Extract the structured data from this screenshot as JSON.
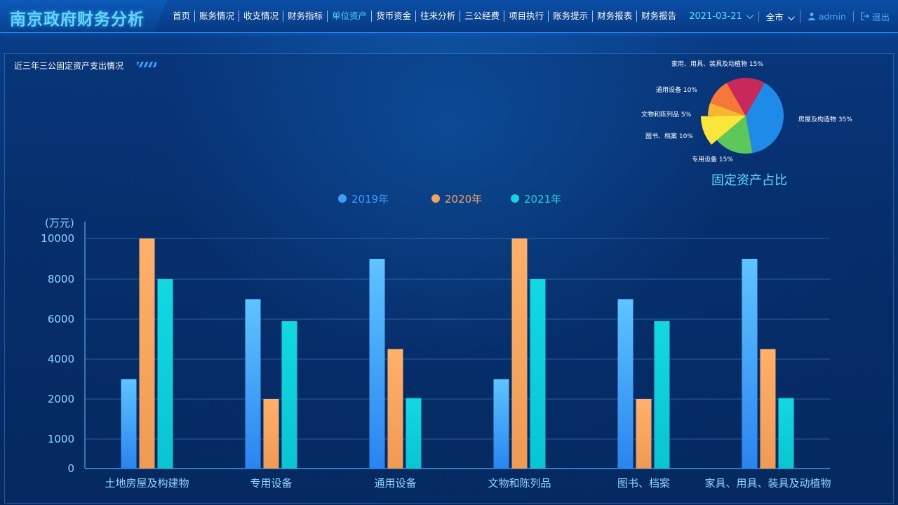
{
  "header": {
    "title": "南京政府财务分析",
    "nav": [
      "首页",
      "账务情况",
      "收支情况",
      "财务指标",
      "单位资产",
      "货币资金",
      "往来分析",
      "三公经费",
      "项目执行",
      "账务提示",
      "财务报表",
      "财务报告"
    ],
    "active_nav": "单位资产",
    "date": "2021-03-21",
    "scope": "全市",
    "user": "admin",
    "logout": "退出"
  },
  "panel": {
    "title": "近三年三公固定资产支出情况"
  },
  "colors": {
    "s2019": "#3d9cff",
    "s2020": "#f5a35c",
    "s2021": "#12d3df"
  },
  "chart_data": [
    {
      "type": "bar",
      "title": "",
      "ylabel": "(万元)",
      "yticks": [
        0,
        1000,
        2000,
        4000,
        6000,
        8000,
        10000
      ],
      "categories": [
        "土地房屋及构建物",
        "专用设备",
        "通用设备",
        "文物和陈列品",
        "图书、档案",
        "家具、用具、装具及动植物"
      ],
      "series": [
        {
          "name": "2019年",
          "values": [
            3000,
            7000,
            9000,
            3000,
            7000,
            9000
          ]
        },
        {
          "name": "2020年",
          "values": [
            10000,
            2000,
            4500,
            10000,
            2000,
            4500
          ]
        },
        {
          "name": "2021年",
          "values": [
            8000,
            5900,
            2050,
            8000,
            5900,
            2050
          ]
        }
      ],
      "legend": "top-center"
    },
    {
      "type": "pie",
      "title": "固定资产占比",
      "slices": [
        {
          "label": "房屋及构造物",
          "value": 35,
          "text": "35%",
          "color": "#1f8be8"
        },
        {
          "label": "专用设备",
          "value": 15,
          "text": "15%",
          "color": "#5ec75a"
        },
        {
          "label": "图书、档案",
          "value": 10,
          "text": "10%",
          "color": "#fbe53a"
        },
        {
          "label": "文物和陈列品",
          "value": 5,
          "text": "5%",
          "color": "#f8b531"
        },
        {
          "label": "通用设备",
          "value": 10,
          "text": "10%",
          "color": "#f5773a"
        },
        {
          "label": "家用、用具、装具及动植物",
          "value": 15,
          "text": "15%",
          "color": "#c8285a"
        }
      ]
    }
  ]
}
